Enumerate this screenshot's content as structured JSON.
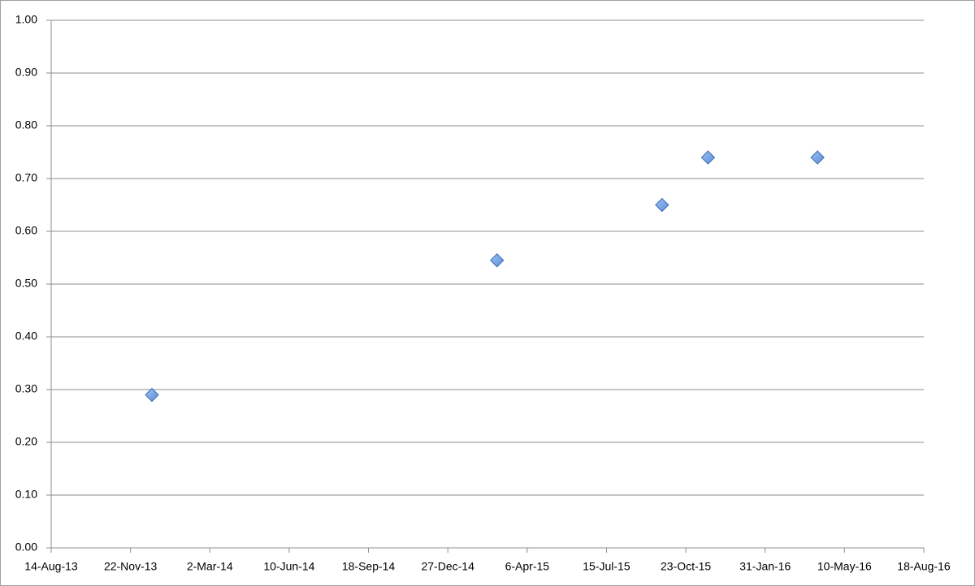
{
  "chart_data": {
    "type": "scatter",
    "x": [
      "2013-12-19",
      "2015-02-27",
      "2015-09-23",
      "2015-11-20",
      "2016-04-06"
    ],
    "values": [
      0.29,
      0.545,
      0.65,
      0.74,
      0.74
    ],
    "color": "#5b8fd9",
    "xlim": [
      "2013-08-14",
      "2016-08-18"
    ],
    "xticks": [
      {
        "value": "2013-08-14",
        "label": "14-Aug-13"
      },
      {
        "value": "2013-11-22",
        "label": "22-Nov-13"
      },
      {
        "value": "2014-03-02",
        "label": "2-Mar-14"
      },
      {
        "value": "2014-06-10",
        "label": "10-Jun-14"
      },
      {
        "value": "2014-09-18",
        "label": "18-Sep-14"
      },
      {
        "value": "2014-12-27",
        "label": "27-Dec-14"
      },
      {
        "value": "2015-04-06",
        "label": "6-Apr-15"
      },
      {
        "value": "2015-07-15",
        "label": "15-Jul-15"
      },
      {
        "value": "2015-10-23",
        "label": "23-Oct-15"
      },
      {
        "value": "2016-01-31",
        "label": "31-Jan-16"
      },
      {
        "value": "2016-05-10",
        "label": "10-May-16"
      },
      {
        "value": "2016-08-18",
        "label": "18-Aug-16"
      }
    ],
    "ylim": [
      0,
      1
    ],
    "yticks": [
      {
        "value": 0,
        "label": "0.00"
      },
      {
        "value": 0.1,
        "label": "0.10"
      },
      {
        "value": 0.2,
        "label": "0.20"
      },
      {
        "value": 0.3,
        "label": "0.30"
      },
      {
        "value": 0.4,
        "label": "0.40"
      },
      {
        "value": 0.5,
        "label": "0.50"
      },
      {
        "value": 0.6,
        "label": "0.60"
      },
      {
        "value": 0.7,
        "label": "0.70"
      },
      {
        "value": 0.8,
        "label": "0.80"
      },
      {
        "value": 0.9,
        "label": "0.90"
      },
      {
        "value": 1,
        "label": "1.00"
      }
    ],
    "grid": true
  }
}
